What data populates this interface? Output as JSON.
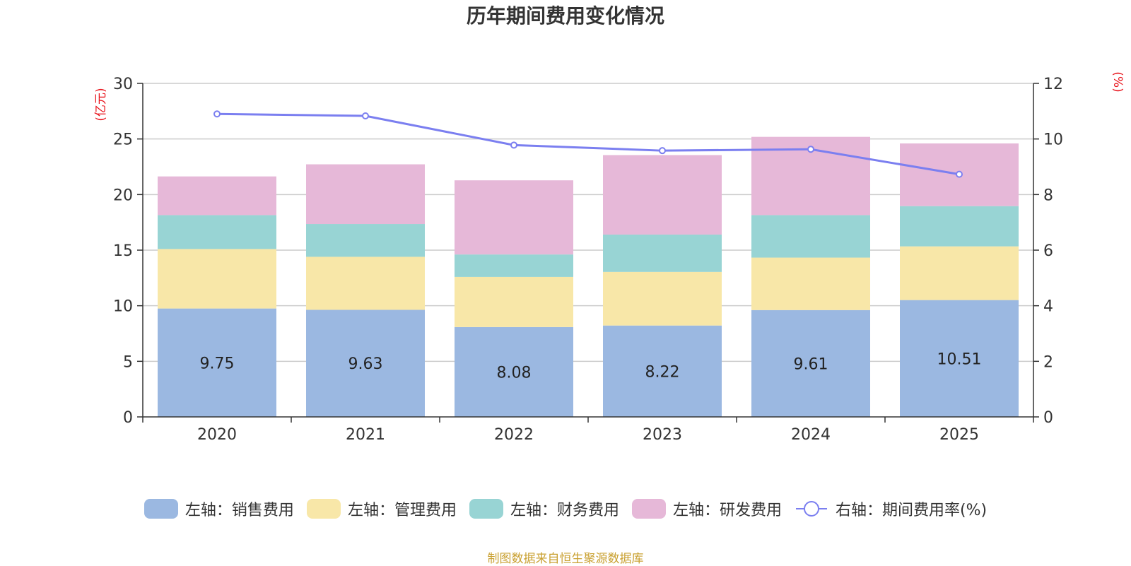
{
  "chart_data": {
    "type": "bar",
    "stacked": true,
    "title": "历年期间费用变化情况",
    "categories": [
      "2020",
      "2021",
      "2022",
      "2023",
      "2024",
      "2025"
    ],
    "left_axis": {
      "unit": "(亿元)",
      "ylim": [
        0,
        30
      ],
      "ticks": [
        0,
        5,
        10,
        15,
        20,
        25,
        30
      ]
    },
    "right_axis": {
      "unit": "(%)",
      "ylim": [
        0,
        12
      ],
      "ticks": [
        0,
        2,
        4,
        6,
        8,
        10,
        12
      ]
    },
    "series": [
      {
        "name": "左轴：销售费用",
        "axis": "left",
        "type": "bar",
        "color": "#9bb8e1",
        "values": [
          9.75,
          9.63,
          8.08,
          8.22,
          9.61,
          10.51
        ],
        "labels": [
          "9.75",
          "9.63",
          "8.08",
          "8.22",
          "9.61",
          "10.51"
        ]
      },
      {
        "name": "左轴：管理费用",
        "axis": "left",
        "type": "bar",
        "color": "#f8e7a8",
        "values": [
          5.35,
          4.77,
          4.51,
          4.82,
          4.72,
          4.83
        ]
      },
      {
        "name": "左轴：财务费用",
        "axis": "left",
        "type": "bar",
        "color": "#98d4d4",
        "values": [
          3.05,
          2.95,
          2.02,
          3.36,
          3.82,
          3.62
        ]
      },
      {
        "name": "左轴：研发费用",
        "axis": "left",
        "type": "bar",
        "color": "#e6b8d8",
        "values": [
          3.48,
          5.37,
          6.67,
          7.15,
          7.04,
          5.64
        ]
      },
      {
        "name": "右轴：期间费用率(%)",
        "axis": "right",
        "type": "line",
        "color": "#7b7ff0",
        "values": [
          10.9,
          10.83,
          9.78,
          9.58,
          9.63,
          8.73
        ]
      }
    ]
  },
  "source": "制图数据来自恒生聚源数据库"
}
